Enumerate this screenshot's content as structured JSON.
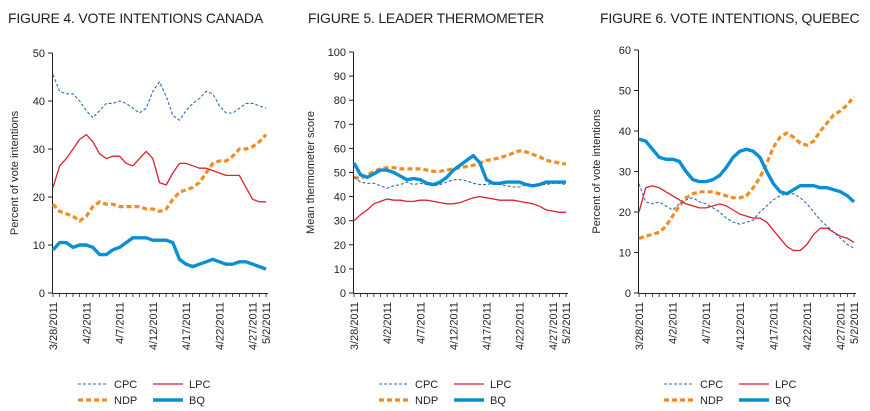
{
  "colors": {
    "CPC": "#2d6fb5",
    "LPC": "#d9232e",
    "NDP": "#f68b1f",
    "BQ": "#0a8fd3",
    "axis": "#231f20"
  },
  "legend_labels": {
    "CPC": "CPC",
    "LPC": "LPC",
    "NDP": "NDP",
    "BQ": "BQ"
  },
  "chart_data": [
    {
      "type": "line",
      "title": "FIGURE 4. VOTE INTENTIONS CANADA",
      "ylabel": "Percent of vote intentions",
      "xlabel": "",
      "ylim": [
        0,
        50
      ],
      "yticks": [
        0,
        10,
        20,
        30,
        40,
        50
      ],
      "xlim": [
        "3/28/2011",
        "5/2/2011"
      ],
      "xtick_labels": [
        "3/28/2011",
        "4/2/2011",
        "4/7/2011",
        "4/12/2011",
        "4/17/2011",
        "4/22/2011",
        "4/27/2011",
        "5/2/2011"
      ],
      "legend_position": "bottom",
      "series": [
        {
          "name": "CPC",
          "style": "dashed-thin",
          "values": [
            45.5,
            42,
            41.5,
            41.5,
            40,
            38,
            36.5,
            38,
            39.5,
            39.5,
            40,
            39.5,
            38.5,
            37.5,
            38.5,
            42,
            44,
            41,
            37,
            36,
            38,
            39.5,
            40.5,
            42,
            41.5,
            39,
            37.5,
            37.5,
            38.5,
            39.5,
            39.5,
            39,
            38.5
          ]
        },
        {
          "name": "LPC",
          "style": "solid-thin",
          "values": [
            22,
            26.5,
            28,
            30,
            32,
            33,
            31.5,
            29,
            28,
            28.5,
            28.5,
            27,
            26.5,
            28,
            29.5,
            28,
            23,
            22.5,
            25,
            27,
            27,
            26.5,
            26,
            26,
            25.5,
            25,
            24.5,
            24.5,
            24.5,
            22,
            19.5,
            19,
            19
          ]
        },
        {
          "name": "NDP",
          "style": "dashed-thick",
          "values": [
            18.5,
            17,
            16.5,
            16,
            15,
            16,
            18,
            19,
            18.5,
            18.5,
            18,
            18,
            18,
            18,
            17.5,
            17.5,
            17,
            17.5,
            19.5,
            21,
            21.5,
            22,
            23,
            25,
            27,
            27.5,
            27.5,
            28.5,
            30,
            30,
            30.5,
            31.5,
            33
          ]
        },
        {
          "name": "BQ",
          "style": "solid-thick",
          "values": [
            9,
            10.5,
            10.5,
            9.5,
            10,
            10,
            9.5,
            8,
            8,
            9,
            9.5,
            10.5,
            11.5,
            11.5,
            11.5,
            11,
            11,
            11,
            10.5,
            7,
            6,
            5.5,
            6,
            6.5,
            7,
            6.5,
            6,
            6,
            6.5,
            6.5,
            6,
            5.5,
            5
          ]
        }
      ]
    },
    {
      "type": "line",
      "title": "FIGURE 5. LEADER THERMOMETER",
      "ylabel": "Mean thermometer score",
      "xlabel": "",
      "ylim": [
        0,
        100
      ],
      "yticks": [
        0,
        10,
        20,
        30,
        40,
        50,
        60,
        70,
        80,
        90,
        100
      ],
      "xlim": [
        "3/28/2011",
        "5/2/2011"
      ],
      "xtick_labels": [
        "3/28/2011",
        "4/2/2011",
        "4/7/2011",
        "4/12/2011",
        "4/17/2011",
        "4/22/2011",
        "4/27/2011",
        "5/2/2011"
      ],
      "legend_position": "bottom",
      "series": [
        {
          "name": "CPC",
          "style": "dashed-thin",
          "values": [
            48,
            46,
            45.5,
            45.5,
            44.5,
            43.5,
            44.5,
            45,
            46,
            45,
            45.5,
            45,
            44.5,
            45,
            46,
            47,
            47,
            46.5,
            45.5,
            45,
            45,
            45.5,
            45,
            44.5,
            44,
            44,
            45,
            45,
            45,
            45,
            45.5,
            45.5,
            45
          ]
        },
        {
          "name": "LPC",
          "style": "solid-thin",
          "values": [
            30,
            32.5,
            34.5,
            37,
            38,
            39,
            38.5,
            38.5,
            38,
            38,
            38.5,
            38.5,
            38,
            37.5,
            37,
            37,
            37.5,
            38.5,
            39.5,
            40,
            39.5,
            39,
            38.5,
            38.5,
            38.5,
            38,
            37.5,
            37,
            36,
            34.5,
            34,
            33.5,
            33.5
          ]
        },
        {
          "name": "NDP",
          "style": "dashed-thick",
          "values": [
            48,
            47.5,
            49,
            50.5,
            51.5,
            52,
            52,
            51.5,
            51.5,
            51.5,
            51.5,
            51,
            50.5,
            50.5,
            51,
            51.5,
            52,
            52.5,
            53,
            54,
            55,
            55.5,
            56,
            57,
            58,
            59,
            58.5,
            57.5,
            56.5,
            55,
            54.5,
            54,
            53.5
          ]
        },
        {
          "name": "BQ",
          "style": "solid-thick",
          "values": [
            54,
            49,
            48,
            49.5,
            51,
            51,
            50,
            48.5,
            47,
            47.5,
            47,
            45.5,
            45,
            46,
            48,
            51,
            53,
            55,
            57,
            54,
            47,
            45.5,
            45.5,
            46,
            46,
            46,
            45,
            44.5,
            45,
            46,
            46,
            46,
            46
          ]
        }
      ]
    },
    {
      "type": "line",
      "title": "FIGURE 6. VOTE INTENTIONS, QUEBEC",
      "ylabel": "Percent of vote intentions",
      "xlabel": "",
      "ylim": [
        0,
        60
      ],
      "yticks": [
        0,
        10,
        20,
        30,
        40,
        50,
        60
      ],
      "xlim": [
        "3/28/2011",
        "5/2/2011"
      ],
      "xtick_labels": [
        "3/28/2011",
        "4/2/2011",
        "4/7/2011",
        "4/12/2011",
        "4/17/2011",
        "4/22/2011",
        "4/27/2011",
        "5/2/2011"
      ],
      "legend_position": "bottom",
      "series": [
        {
          "name": "CPC",
          "style": "dashed-thin",
          "values": [
            27,
            22.5,
            22,
            22.5,
            21.5,
            20.5,
            22,
            23,
            23.5,
            22.5,
            22,
            21,
            20,
            18.5,
            17.5,
            17,
            17.5,
            18,
            20,
            21.5,
            23,
            24,
            24.5,
            24.5,
            23.5,
            22,
            20,
            18,
            16.5,
            15,
            13.5,
            12,
            11
          ]
        },
        {
          "name": "LPC",
          "style": "solid-thin",
          "values": [
            20,
            26,
            26.5,
            26,
            25,
            24,
            23,
            22,
            21.5,
            21,
            21,
            21.5,
            22,
            21.5,
            20.5,
            19.5,
            19,
            18.5,
            18.5,
            17.5,
            15.5,
            13.5,
            11.5,
            10.5,
            10.5,
            12,
            14.5,
            16,
            16,
            15,
            14,
            13.5,
            12.5
          ]
        },
        {
          "name": "NDP",
          "style": "dashed-thick",
          "values": [
            13.5,
            14,
            14.5,
            15,
            16.5,
            19,
            21.5,
            23.5,
            24.5,
            25,
            25,
            25,
            24.5,
            24,
            23.5,
            23.5,
            24,
            26,
            28.5,
            32,
            36,
            38.5,
            39.5,
            38.5,
            37,
            36.5,
            37.5,
            40,
            42,
            44,
            45,
            46.5,
            48.5
          ]
        },
        {
          "name": "BQ",
          "style": "solid-thick",
          "values": [
            38,
            37.5,
            35.5,
            33.5,
            33,
            33,
            32.5,
            30,
            28,
            27.5,
            27.5,
            28,
            29,
            31,
            33.5,
            35,
            35.5,
            35,
            33.5,
            30,
            27,
            25,
            24.5,
            25.5,
            26.5,
            26.5,
            26.5,
            26,
            26,
            25.5,
            25,
            24,
            22.5
          ]
        }
      ]
    }
  ]
}
